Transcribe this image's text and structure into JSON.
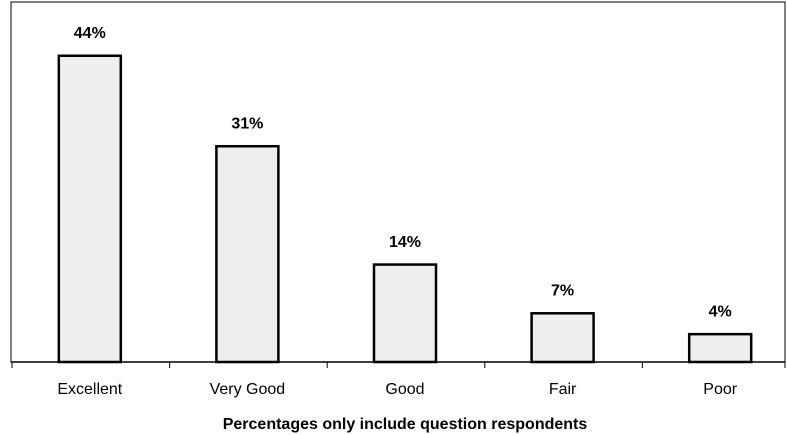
{
  "chart_data": {
    "type": "bar",
    "x_label": "Percentages only include question respondents",
    "categories": [
      "Excellent",
      "Very Good",
      "Good",
      "Fair",
      "Poor"
    ],
    "values": [
      44,
      31,
      14,
      7,
      4
    ],
    "value_labels": [
      "44%",
      "31%",
      "14%",
      "7%",
      "4%"
    ],
    "color": "#eeeeee",
    "ylim": [
      0,
      50
    ]
  }
}
